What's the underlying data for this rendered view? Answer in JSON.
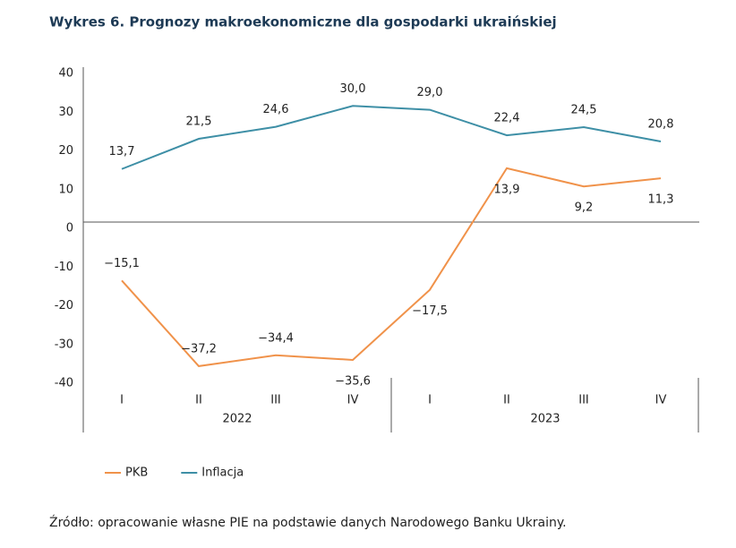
{
  "chart_data": {
    "type": "line",
    "title": "Wykres 6. Prognozy makroekonomiczne dla gospodarki ukraińskiej",
    "categories": [
      "I",
      "II",
      "III",
      "IV",
      "I",
      "II",
      "III",
      "IV"
    ],
    "category_groups": [
      "2022",
      "2023"
    ],
    "series": [
      {
        "name": "PKB",
        "color": "#f0924a",
        "values": [
          -15.1,
          -37.2,
          -34.4,
          -35.6,
          -17.5,
          13.9,
          9.2,
          11.3
        ],
        "value_labels": [
          "−15,1",
          "−37,2",
          "−34,4",
          "−35,6",
          "−17,5",
          "13,9",
          "9,2",
          "11,3"
        ]
      },
      {
        "name": "Inflacja",
        "color": "#3e8fa6",
        "values": [
          13.7,
          21.5,
          24.6,
          30.0,
          29.0,
          22.4,
          24.5,
          20.8
        ],
        "value_labels": [
          "13,7",
          "21,5",
          "24,6",
          "30,0",
          "29,0",
          "22,4",
          "24,5",
          "20,8"
        ]
      }
    ],
    "ylim": [
      -40,
      40
    ],
    "yticks": [
      -40,
      -30,
      -20,
      -10,
      0,
      10,
      20,
      30,
      40
    ],
    "legend": "bottom-left",
    "source": "Źródło: opracowanie własne PIE na podstawie danych Narodowego Banku Ukrainy."
  }
}
